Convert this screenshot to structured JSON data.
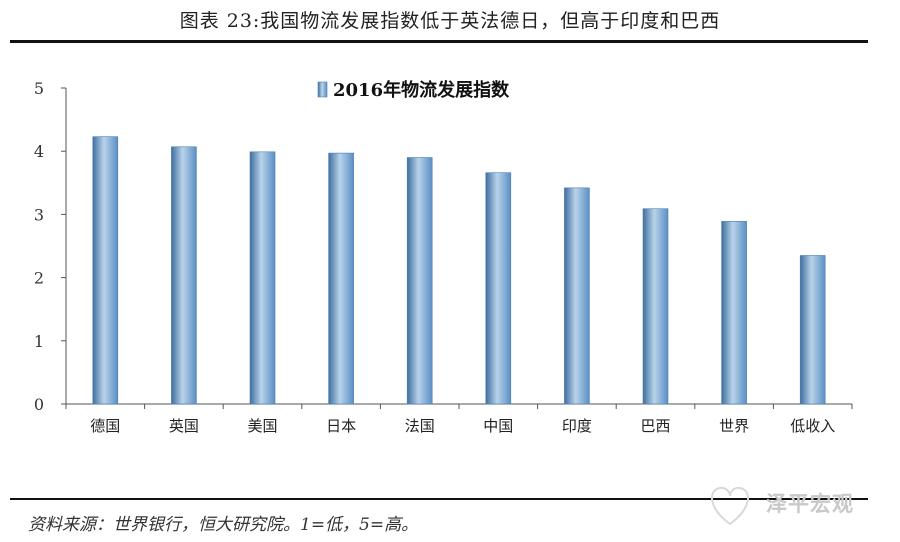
{
  "header": {
    "title": "图表 23:我国物流发展指数低于英法德日，但高于印度和巴西"
  },
  "footer": {
    "source": "资料来源：世界银行，恒大研究院。1=低，5=高。"
  },
  "watermark": {
    "text": "泽平宏观"
  },
  "chart_data": {
    "type": "bar",
    "title": "",
    "xlabel": "",
    "ylabel": "",
    "categories": [
      "德国",
      "英国",
      "美国",
      "日本",
      "法国",
      "中国",
      "印度",
      "巴西",
      "世界",
      "低收入"
    ],
    "series": [
      {
        "name": "2016年物流发展指数",
        "values": [
          4.23,
          4.07,
          3.99,
          3.97,
          3.9,
          3.66,
          3.42,
          3.09,
          2.89,
          2.35
        ]
      }
    ],
    "ylim": [
      0,
      5
    ],
    "yticks": [
      "0",
      "1",
      "2",
      "3",
      "4",
      "5"
    ],
    "grid": false,
    "legend_position": "top-center",
    "colors": {
      "bar": "#5a8fc4",
      "bar_light": "#b9d3ea",
      "bar_dark": "#3f6f9f",
      "axis": "#555555"
    }
  }
}
